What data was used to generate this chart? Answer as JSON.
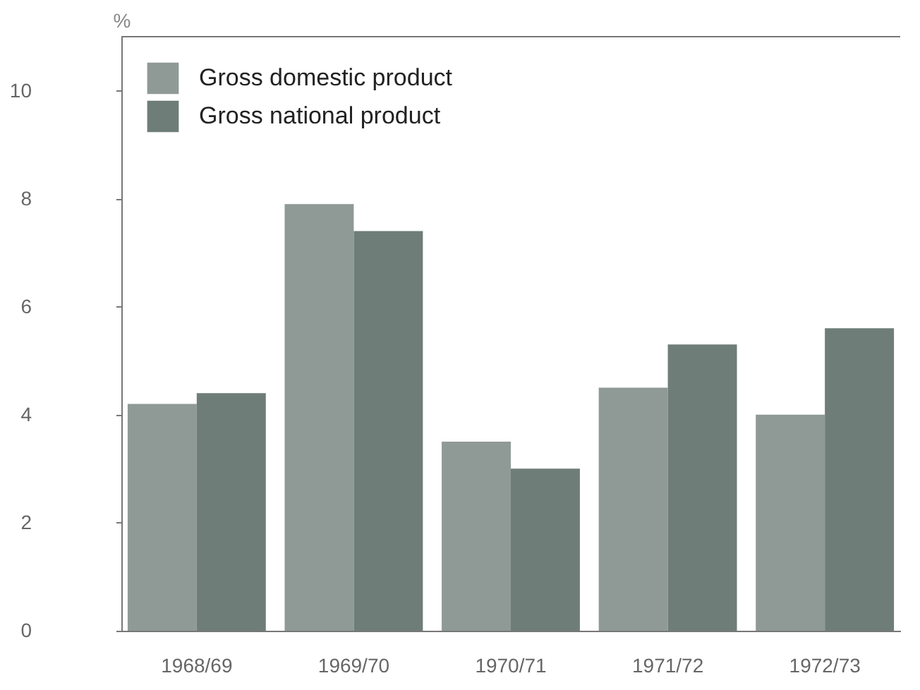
{
  "chart_data": {
    "type": "bar",
    "ylabel": "%",
    "categories": [
      "1968/69",
      "1969/70",
      "1970/71",
      "1971/72",
      "1972/73"
    ],
    "series": [
      {
        "name": "Gross domestic product",
        "color": "#8f9a96",
        "values": [
          4.2,
          7.9,
          3.5,
          4.5,
          4.0
        ]
      },
      {
        "name": "Gross national product",
        "color": "#6f7d79",
        "values": [
          4.4,
          7.4,
          3.0,
          5.3,
          5.6
        ]
      }
    ],
    "ylim": [
      0,
      11
    ],
    "yticks": [
      0,
      2,
      4,
      6,
      8,
      10
    ],
    "grid": false,
    "legend": "top left"
  }
}
